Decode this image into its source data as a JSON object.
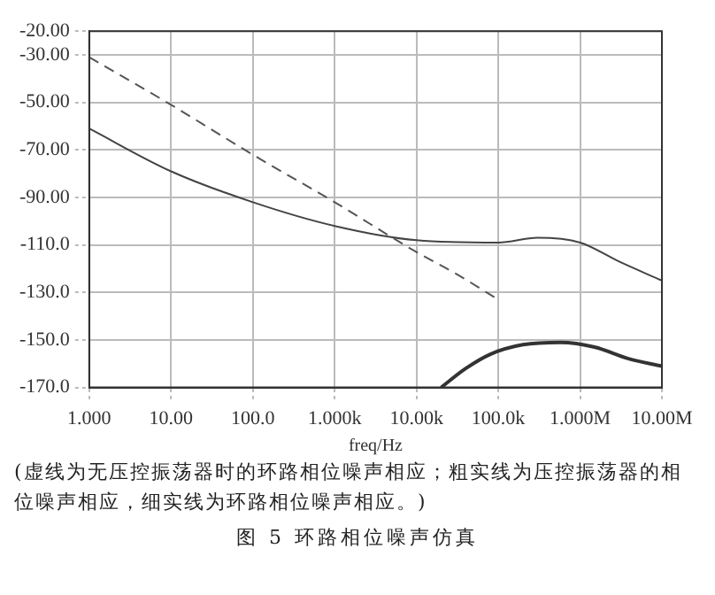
{
  "chart_data": {
    "type": "line",
    "title": "图 5 环路相位噪声仿真",
    "xlabel": "freq/Hz",
    "annotations": [
      "(虚线为无压控振荡器时的环路相位噪声相应；粗实线为压控振荡器的相位噪声相应，细实线为环路相位噪声相应。)"
    ],
    "log": "x",
    "grid": true,
    "marker": "none",
    "xlim": [
      1,
      10000000
    ],
    "ylim": [
      -170,
      -20
    ],
    "xticks": [
      {
        "value": 1,
        "label": "1.000"
      },
      {
        "value": 10,
        "label": "10.00"
      },
      {
        "value": 100,
        "label": "100.0"
      },
      {
        "value": 1000,
        "label": "1.000k"
      },
      {
        "value": 10000,
        "label": "10.00k"
      },
      {
        "value": 100000,
        "label": "100.0k"
      },
      {
        "value": 1000000,
        "label": "1.000M"
      },
      {
        "value": 10000000,
        "label": "10.00M"
      }
    ],
    "yticks": [
      {
        "value": -20,
        "label": "-20.00"
      },
      {
        "value": -30,
        "label": "-30.00"
      },
      {
        "value": -50,
        "label": "-50.00"
      },
      {
        "value": -70,
        "label": "-70.00"
      },
      {
        "value": -90,
        "label": "-90.00"
      },
      {
        "value": -110,
        "label": "-110.0"
      },
      {
        "value": -130,
        "label": "-130.0"
      },
      {
        "value": -150,
        "label": "-150.0"
      },
      {
        "value": -170,
        "label": "-170.0"
      }
    ],
    "series": [
      {
        "color": "#555555",
        "line_style": "dashed",
        "x": [
          1,
          10,
          100,
          1000,
          10000,
          30000,
          100000
        ],
        "values": [
          -31,
          -51,
          -72,
          -92,
          -113,
          -122,
          -133
        ]
      },
      {
        "color": "#444444",
        "line_style": "solid",
        "x": [
          1,
          10,
          100,
          1000,
          10000,
          100000,
          300000,
          1000000,
          3000000,
          10000000
        ],
        "values": [
          -61,
          -79,
          -92,
          -102,
          -108,
          -109,
          -107,
          -109,
          -117,
          -125
        ]
      },
      {
        "color": "#333333",
        "line_style": "solid",
        "x": [
          20000,
          40000,
          80000,
          200000,
          580000,
          1500000,
          4000000,
          10000000
        ],
        "values": [
          -170,
          -162,
          -156,
          -152,
          -151,
          -153,
          -158,
          -161
        ]
      }
    ]
  }
}
